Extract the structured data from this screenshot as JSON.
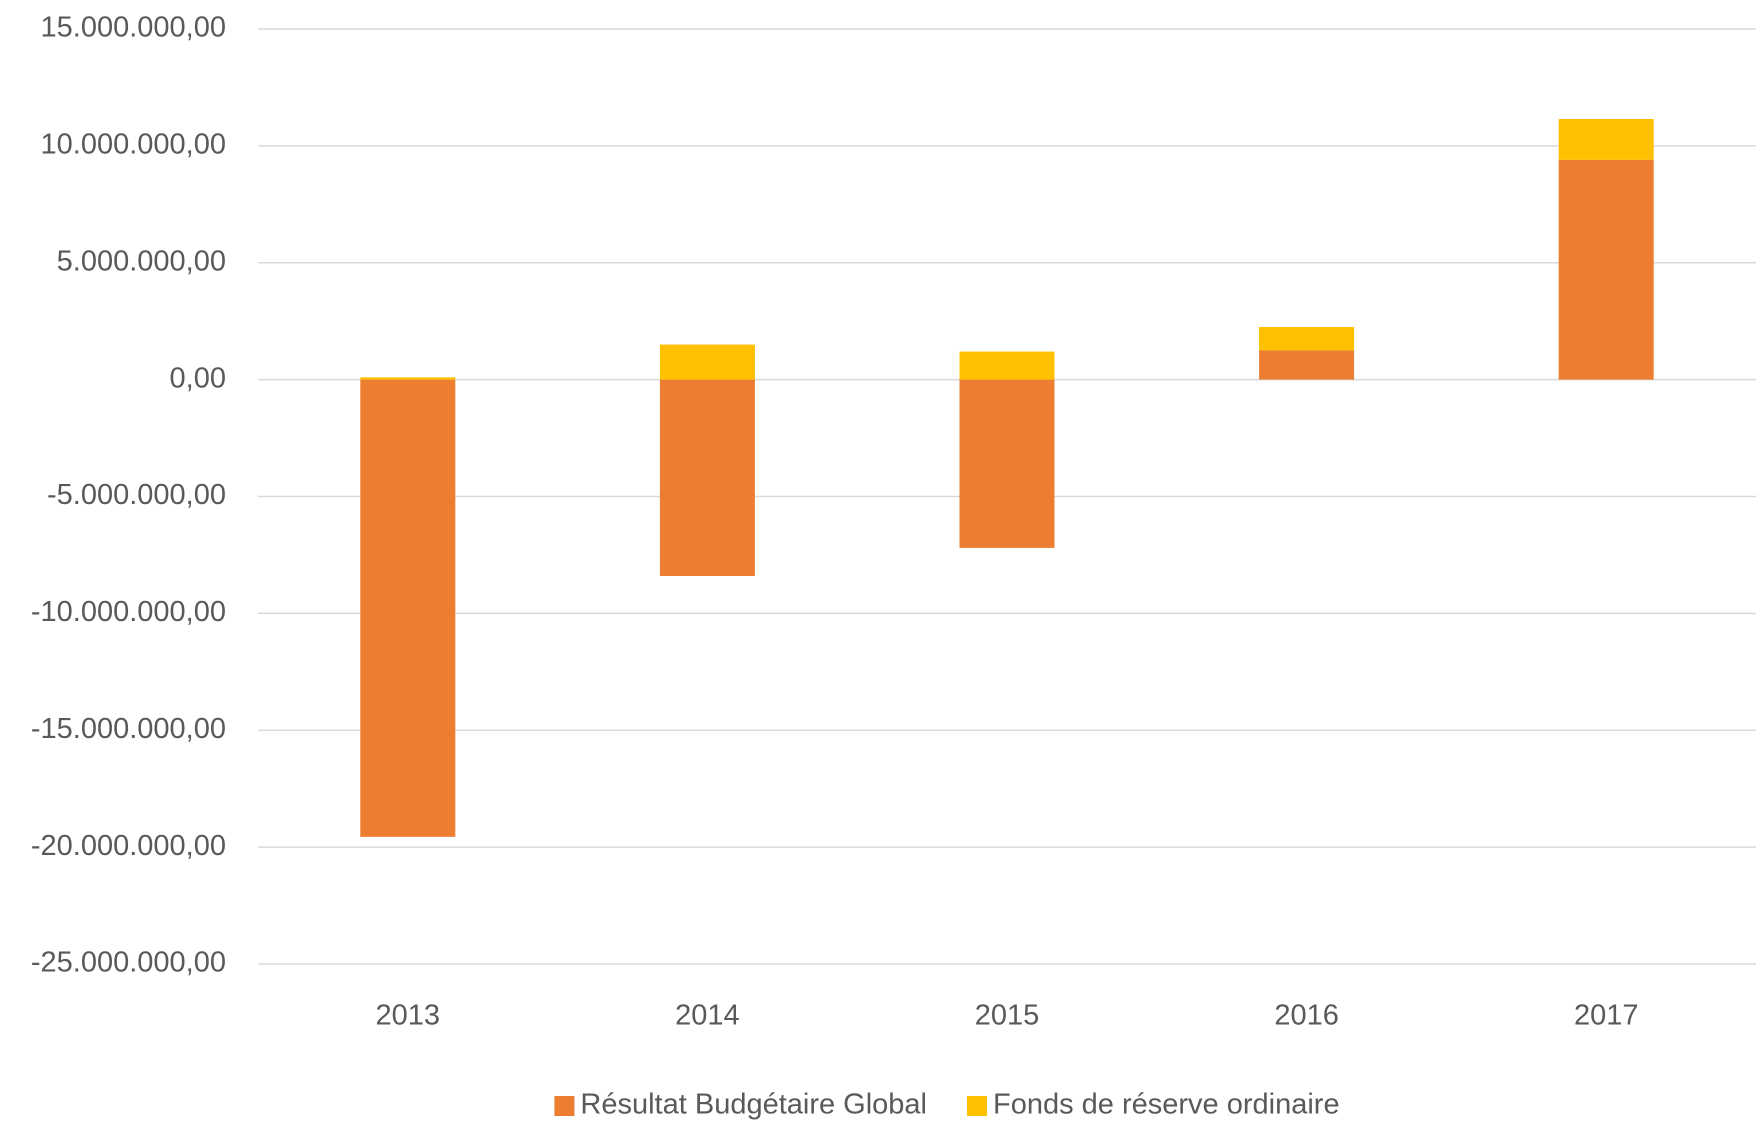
{
  "chart_data": {
    "type": "stacked_bar",
    "categories": [
      "2013",
      "2014",
      "2015",
      "2016",
      "2017"
    ],
    "series": [
      {
        "name": "Résultat Budgétaire Global",
        "color": "#ED7D31",
        "values": [
          -19560000,
          -8400000,
          -7200000,
          1250000,
          9400000
        ]
      },
      {
        "name": "Fonds de réserve ordinaire",
        "color": "#FFC000",
        "values": [
          100000,
          1500000,
          1200000,
          1000000,
          1750000
        ]
      }
    ],
    "ylim": [
      -25000000,
      15000000
    ],
    "yticks": [
      {
        "value": -25000000,
        "label": "-25.000.000,00"
      },
      {
        "value": -20000000,
        "label": "-20.000.000,00"
      },
      {
        "value": -15000000,
        "label": "-15.000.000,00"
      },
      {
        "value": -10000000,
        "label": "-10.000.000,00"
      },
      {
        "value": -5000000,
        "label": "-5.000.000,00"
      },
      {
        "value": 0,
        "label": "0,00"
      },
      {
        "value": 5000000,
        "label": "5.000.000,00"
      },
      {
        "value": 10000000,
        "label": "10.000.000,00"
      },
      {
        "value": 15000000,
        "label": "15.000.000,00"
      }
    ],
    "grid": true,
    "legend": "bottom"
  }
}
